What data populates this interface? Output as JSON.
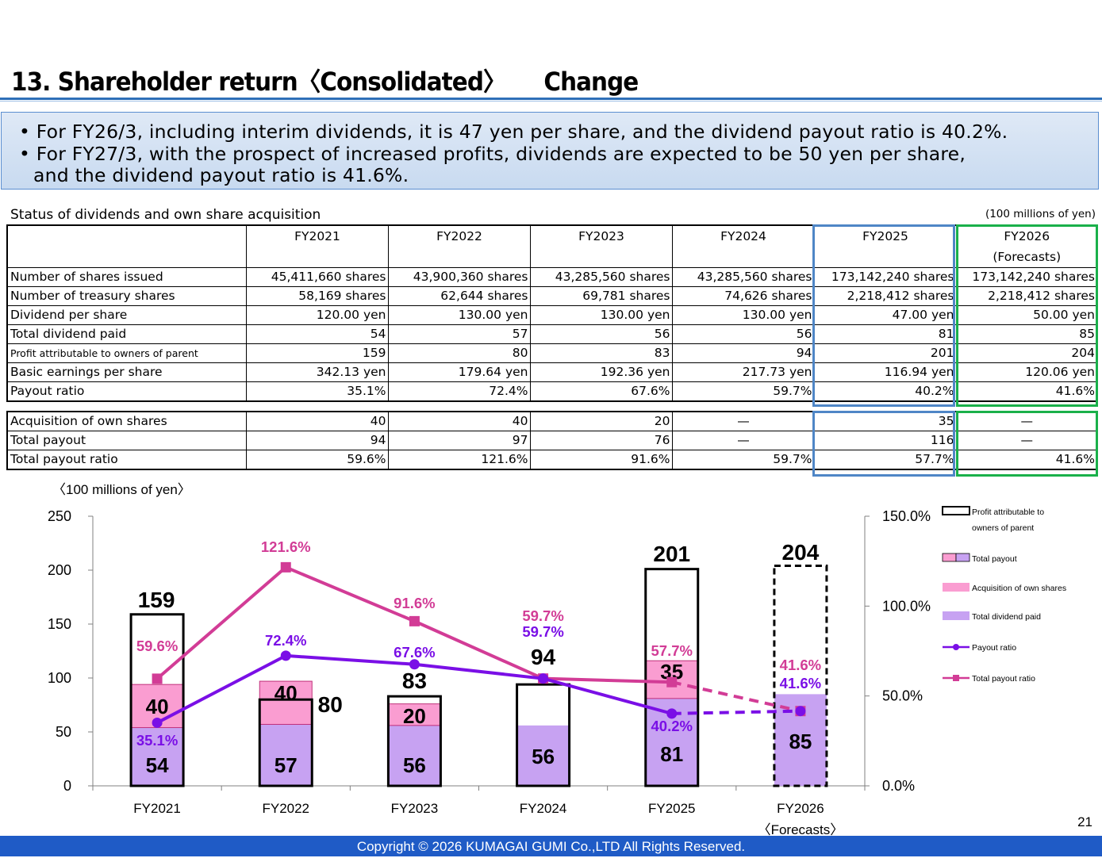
{
  "title": "13. Shareholder return〈Consolidated〉",
  "title_suffix": "Change",
  "summary": {
    "line1": "• For FY26/3, including interim dividends, it is 47 yen per share, and the dividend payout ratio is 40.2%.",
    "line2": "• For FY27/3, with the prospect of increased profits, dividends are expected to be 50 yen per share,",
    "line3": "and the dividend payout ratio is 41.6%."
  },
  "table": {
    "caption": "Status of dividends and own share acquisition",
    "unit": "(100 millions of yen)",
    "columns": [
      "FY2021",
      "FY2022",
      "FY2023",
      "FY2024",
      "FY2025",
      "FY2026"
    ],
    "forecast_note": "(Forecasts)",
    "rows": [
      {
        "label": "Number of shares issued",
        "values": [
          "45,411,660 shares",
          "43,900,360 shares",
          "43,285,560 shares",
          "43,285,560 shares",
          "173,142,240 shares",
          "173,142,240 shares"
        ]
      },
      {
        "label": "Number of treasury shares",
        "values": [
          "58,169 shares",
          "62,644 shares",
          "69,781 shares",
          "74,626 shares",
          "2,218,412 shares",
          "2,218,412 shares"
        ]
      },
      {
        "label": "Dividend per share",
        "values": [
          "120.00 yen",
          "130.00 yen",
          "130.00 yen",
          "130.00 yen",
          "47.00 yen",
          "50.00 yen"
        ]
      },
      {
        "label": "Total dividend paid",
        "values": [
          "54",
          "57",
          "56",
          "56",
          "81",
          "85"
        ]
      },
      {
        "label": "Profit attributable to owners of parent",
        "values": [
          "159",
          "80",
          "83",
          "94",
          "201",
          "204"
        ]
      },
      {
        "label": "Basic earnings per share",
        "values": [
          "342.13 yen",
          "179.64 yen",
          "192.36 yen",
          "217.73 yen",
          "116.94 yen",
          "120.06 yen"
        ]
      },
      {
        "label": "Payout ratio",
        "values": [
          "35.1%",
          "72.4%",
          "67.6%",
          "59.7%",
          "40.2%",
          "41.6%"
        ]
      }
    ],
    "rows2": [
      {
        "label": "Acquisition of own shares",
        "values": [
          "40",
          "40",
          "20",
          "—",
          "35",
          "—"
        ]
      },
      {
        "label": "Total payout",
        "values": [
          "94",
          "97",
          "76",
          "—",
          "116",
          "—"
        ]
      },
      {
        "label": "Total payout ratio",
        "values": [
          "59.6%",
          "121.6%",
          "91.6%",
          "59.7%",
          "57.7%",
          "41.6%"
        ]
      }
    ]
  },
  "chart_unit": "〈100 millions of yen〉",
  "chart_data": {
    "type": "bar",
    "categories": [
      "FY2021",
      "FY2022",
      "FY2023",
      "FY2024",
      "FY2025",
      "FY2026"
    ],
    "category_sublabels": [
      "",
      "",
      "",
      "",
      "",
      "〈Forecasts〉"
    ],
    "ylim": [
      0,
      250
    ],
    "yticks": [
      "0",
      "50",
      "100",
      "150",
      "200",
      "250"
    ],
    "y2lim": [
      0,
      150
    ],
    "y2ticks": [
      "0.0%",
      "50.0%",
      "100.0%",
      "150.0%"
    ],
    "legend_position": "right",
    "series": [
      {
        "name": "Total dividend paid",
        "kind": "bar-stack",
        "color": "#c7a2f2",
        "values": [
          54,
          57,
          56,
          56,
          81,
          85
        ]
      },
      {
        "name": "Acquisition of own shares",
        "kind": "bar-stack",
        "color": "#fa9dd1",
        "values": [
          40,
          40,
          20,
          0,
          35,
          0
        ]
      },
      {
        "name": "Profit attributable to owners of parent",
        "kind": "bar-outline",
        "color": "#000000",
        "values": [
          159,
          80,
          83,
          94,
          201,
          204
        ],
        "forecast_dashed_from_index": 5
      },
      {
        "name": "Payout ratio",
        "kind": "line",
        "axis": "right",
        "color": "#7a0fe6",
        "values": [
          35.1,
          72.4,
          67.6,
          59.7,
          40.2,
          41.6
        ],
        "labels": [
          "35.1%",
          "72.4%",
          "67.6%",
          "59.7%",
          "40.2%",
          "41.6%"
        ]
      },
      {
        "name": "Total payout ratio",
        "kind": "line",
        "axis": "right",
        "color": "#d23c96",
        "values": [
          59.6,
          121.6,
          91.6,
          59.7,
          57.7,
          41.6
        ],
        "labels": [
          "59.6%",
          "121.6%",
          "91.6%",
          "59.7%",
          "57.7%",
          "41.6%"
        ]
      }
    ],
    "legend": [
      "Profit attributable to owners of parent",
      "Total payout",
      "Acquisition of own shares",
      "Total dividend paid",
      "Payout ratio",
      "Total payout ratio"
    ]
  },
  "page_number": "21",
  "footer": "Copyright © 2026 KUMAGAI  GUMI Co.,LTD All Rights Reserved."
}
